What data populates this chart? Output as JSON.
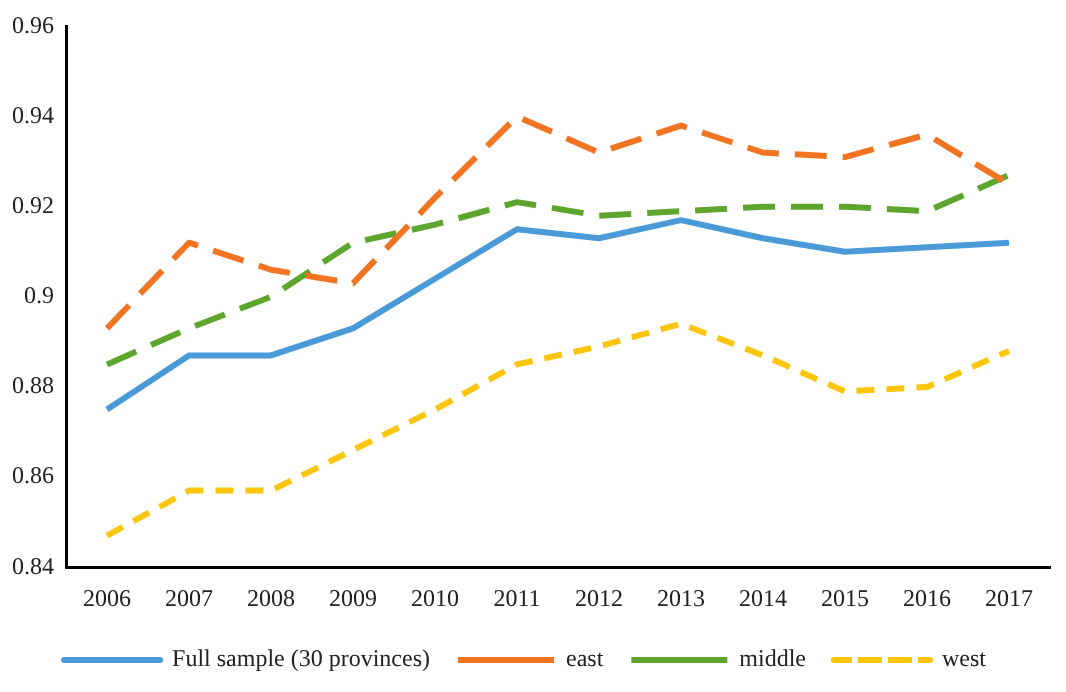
{
  "chart_data": {
    "type": "line",
    "categories": [
      "2006",
      "2007",
      "2008",
      "2009",
      "2010",
      "2011",
      "2012",
      "2013",
      "2014",
      "2015",
      "2016",
      "2017"
    ],
    "series": [
      {
        "name": "Full sample (30 provinces)",
        "color": "#4a9ad8",
        "line_style": "solid",
        "values": [
          0.875,
          0.887,
          0.887,
          0.893,
          0.904,
          0.915,
          0.913,
          0.917,
          0.913,
          0.91,
          0.911,
          0.912
        ]
      },
      {
        "name": "east",
        "color": "#f07422",
        "line_style": "dashed",
        "values": [
          0.893,
          0.912,
          0.906,
          0.903,
          0.922,
          0.94,
          0.932,
          0.938,
          0.932,
          0.931,
          0.936,
          0.925
        ]
      },
      {
        "name": "middle",
        "color": "#5ea52e",
        "line_style": "dashed",
        "values": [
          0.885,
          0.893,
          0.9,
          0.912,
          0.916,
          0.921,
          0.918,
          0.919,
          0.92,
          0.92,
          0.919,
          0.927
        ]
      },
      {
        "name": "west",
        "color": "#fbc50e",
        "line_style": "dotted",
        "values": [
          0.847,
          0.857,
          0.857,
          0.866,
          0.875,
          0.885,
          0.889,
          0.894,
          0.887,
          0.879,
          0.88,
          0.888
        ]
      }
    ],
    "ylim": [
      0.84,
      0.96
    ],
    "yticks": [
      0.84,
      0.86,
      0.88,
      0.9,
      0.92,
      0.94,
      0.96
    ],
    "grid": false,
    "legend": "bottom",
    "marker": "none"
  }
}
